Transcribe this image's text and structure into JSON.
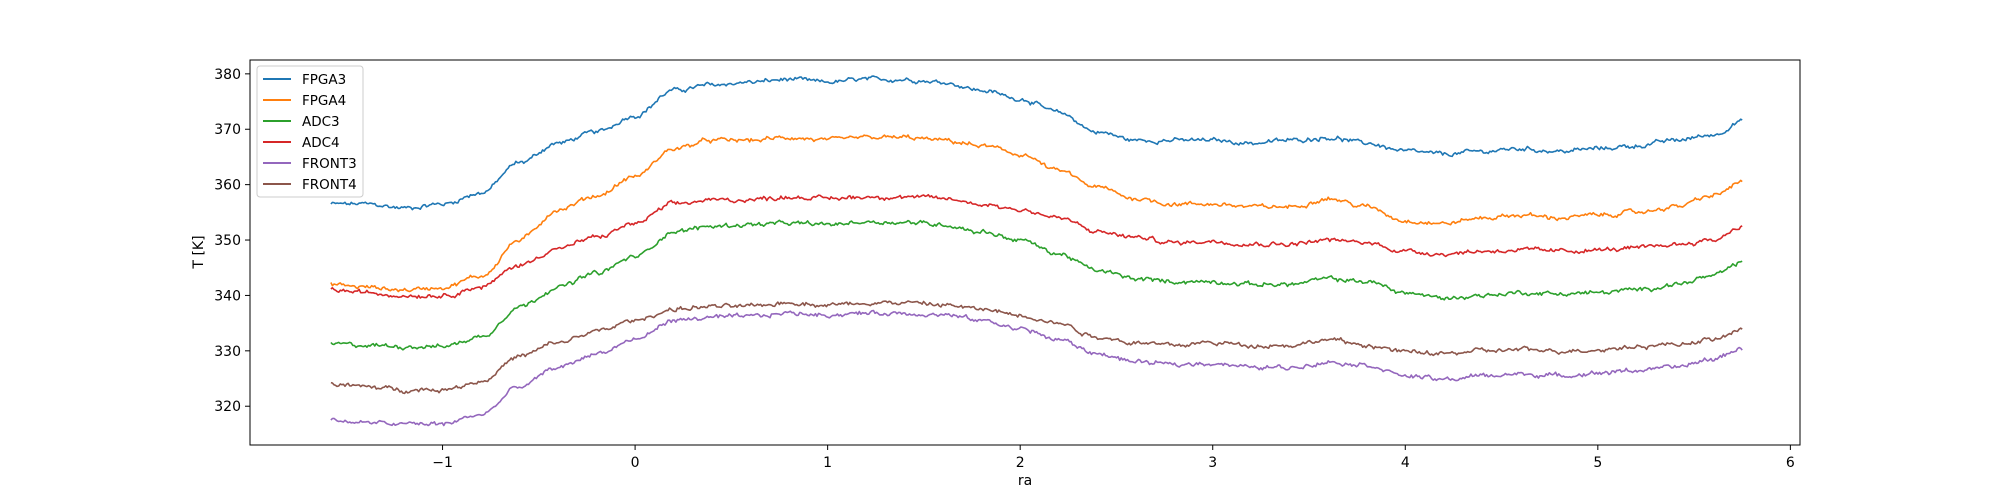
{
  "chart_data": {
    "type": "line",
    "title": "",
    "xlabel": "ra",
    "ylabel": "T [K]",
    "xlim": [
      -2.0,
      6.05
    ],
    "ylim": [
      313,
      382.5
    ],
    "xticks": [
      -1,
      0,
      1,
      2,
      3,
      4,
      5,
      6
    ],
    "xtick_labels": [
      "−1",
      "0",
      "1",
      "2",
      "3",
      "4",
      "5",
      "6"
    ],
    "yticks": [
      320,
      330,
      340,
      350,
      360,
      370,
      380
    ],
    "ytick_labels": [
      "320",
      "330",
      "340",
      "350",
      "360",
      "370",
      "380"
    ],
    "grid": false,
    "legend_position": "top-left",
    "x": [
      -1.58,
      -1.4,
      -1.2,
      -1.0,
      -0.8,
      -0.6,
      -0.4,
      -0.2,
      0.0,
      0.2,
      0.4,
      0.6,
      0.8,
      1.0,
      1.2,
      1.4,
      1.6,
      1.8,
      2.0,
      2.2,
      2.4,
      2.6,
      2.8,
      3.0,
      3.2,
      3.4,
      3.6,
      3.8,
      4.0,
      4.2,
      4.4,
      4.6,
      4.8,
      5.0,
      5.2,
      5.4,
      5.6,
      5.75
    ],
    "series": [
      {
        "name": "FPGA3",
        "color": "#1f77b4",
        "values": [
          356.5,
          356.5,
          355.8,
          356.5,
          358.5,
          364.0,
          367.5,
          369.5,
          372.5,
          377.0,
          378.0,
          378.5,
          379.0,
          378.5,
          379.0,
          379.0,
          378.5,
          377.0,
          375.5,
          373.0,
          369.5,
          368.0,
          368.0,
          368.0,
          367.5,
          368.0,
          368.5,
          367.5,
          366.0,
          365.5,
          366.0,
          366.5,
          366.0,
          366.5,
          367.0,
          368.0,
          369.0,
          371.5
        ]
      },
      {
        "name": "FPGA4",
        "color": "#ff7f0e",
        "values": [
          342.0,
          341.5,
          341.0,
          341.5,
          343.5,
          350.0,
          355.5,
          358.0,
          361.5,
          366.5,
          368.0,
          368.0,
          368.5,
          368.0,
          368.5,
          368.5,
          368.0,
          367.0,
          365.5,
          362.5,
          359.5,
          357.5,
          356.5,
          356.5,
          356.0,
          356.0,
          357.5,
          356.0,
          353.5,
          353.0,
          354.0,
          354.5,
          354.0,
          354.5,
          355.0,
          356.0,
          358.0,
          360.5
        ]
      },
      {
        "name": "ADC3",
        "color": "#2ca02c",
        "values": [
          331.2,
          331.0,
          330.8,
          330.8,
          332.5,
          338.0,
          341.5,
          344.0,
          347.0,
          351.5,
          352.5,
          352.8,
          353.0,
          352.8,
          353.3,
          353.2,
          352.8,
          351.5,
          350.0,
          347.5,
          344.5,
          343.0,
          342.5,
          342.5,
          342.0,
          342.0,
          343.0,
          342.5,
          340.5,
          339.5,
          340.0,
          340.5,
          340.3,
          340.5,
          341.0,
          342.0,
          343.5,
          346.0
        ]
      },
      {
        "name": "ADC4",
        "color": "#d62728",
        "values": [
          341.0,
          340.5,
          340.0,
          340.0,
          341.5,
          345.5,
          348.5,
          350.5,
          353.0,
          356.5,
          357.2,
          357.3,
          357.8,
          357.5,
          357.8,
          357.8,
          357.5,
          356.5,
          355.5,
          354.0,
          351.5,
          350.5,
          349.5,
          349.8,
          349.3,
          349.3,
          350.0,
          349.5,
          348.0,
          347.5,
          348.0,
          348.2,
          348.0,
          348.2,
          348.5,
          349.2,
          350.0,
          352.5
        ]
      },
      {
        "name": "FRONT3",
        "color": "#9467bd",
        "values": [
          317.5,
          317.0,
          316.8,
          316.8,
          318.5,
          323.5,
          327.0,
          329.5,
          332.0,
          335.5,
          336.0,
          336.2,
          336.8,
          336.5,
          336.8,
          336.8,
          336.5,
          335.5,
          334.0,
          332.0,
          329.5,
          328.0,
          327.5,
          327.8,
          327.0,
          327.0,
          328.0,
          327.5,
          325.5,
          324.8,
          325.5,
          325.8,
          325.5,
          326.0,
          326.5,
          327.0,
          328.5,
          330.5
        ]
      },
      {
        "name": "FRONT4",
        "color": "#8c564b",
        "values": [
          324.0,
          323.5,
          323.0,
          323.0,
          324.5,
          329.0,
          331.5,
          333.5,
          335.5,
          337.5,
          338.0,
          338.0,
          338.7,
          338.3,
          338.7,
          338.7,
          338.3,
          337.5,
          336.5,
          335.0,
          332.5,
          331.5,
          331.0,
          331.5,
          331.0,
          331.0,
          332.0,
          331.0,
          329.8,
          329.5,
          330.0,
          330.2,
          330.0,
          330.2,
          330.8,
          331.2,
          332.0,
          333.8
        ]
      }
    ]
  }
}
